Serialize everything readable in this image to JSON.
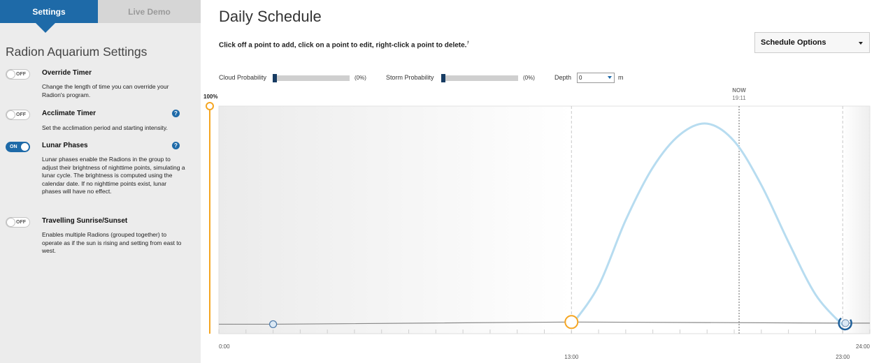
{
  "sidebar": {
    "tabs": [
      {
        "label": "Settings"
      },
      {
        "label": "Live Demo"
      }
    ],
    "title": "Radion Aquarium Settings",
    "settings": [
      {
        "name": "Override Timer",
        "state": "OFF",
        "description": "Change the length of time you can override your Radion's program."
      },
      {
        "name": "Acclimate Timer",
        "state": "OFF",
        "description": "Set the acclimation period and starting intensity."
      },
      {
        "name": "Lunar Phases",
        "state": "ON",
        "description": "Lunar phases enable the Radions in the group to adjust their brightness of nighttime points, simulating a lunar cycle. The brightness is computed using the calendar date. If no nighttime points exist, lunar phases will have no effect."
      },
      {
        "name": "Travelling Sunrise/Sunset",
        "state": "OFF",
        "description": "Enables multiple Radions (grouped together) to operate as if the sun is rising and setting from east to west."
      }
    ],
    "help_glyph": "?"
  },
  "main": {
    "title": "Daily Schedule",
    "instructions": "Click off a point to add, click on a point to edit, right-click a point to delete.",
    "footnote": "†",
    "schedule_options": "Schedule Options",
    "cloud": {
      "label": "Cloud Probability",
      "value_text": "(0%)",
      "value": 0
    },
    "storm": {
      "label": "Storm Probability",
      "value_text": "(0%)",
      "value": 0
    },
    "depth": {
      "label": "Depth",
      "value": "0",
      "unit": "m"
    }
  },
  "chart_data": {
    "type": "line",
    "xlim": [
      0,
      24
    ],
    "ylim": [
      0,
      100
    ],
    "max_label": "100%",
    "x_tick_labels": [
      {
        "x": 0,
        "label": "0:00"
      },
      {
        "x": 13,
        "label": "13:00"
      },
      {
        "x": 23,
        "label": "23:00"
      },
      {
        "x": 24,
        "label": "24:00"
      }
    ],
    "now": {
      "label": "NOW",
      "time_label": "19:11",
      "x": 19.18
    },
    "markers": [
      13,
      23
    ],
    "schedule_points": [
      {
        "x": 2.0,
        "y": 0.5
      },
      {
        "x": 13.0,
        "y": 1.5,
        "selected": true
      },
      {
        "x": 23.1,
        "y": 1.0
      }
    ],
    "curve": {
      "x": [
        13,
        14,
        15,
        16,
        17,
        18,
        19,
        20,
        21,
        22,
        23
      ],
      "y": [
        0,
        18,
        48,
        72,
        87,
        92,
        84,
        64,
        38,
        14,
        0
      ]
    },
    "colors": {
      "curve": "#b7dcf0",
      "baseline": "#888888",
      "selected": "#f5a623",
      "point": "#1e6aa8",
      "accent": "#1e6aa8"
    }
  }
}
